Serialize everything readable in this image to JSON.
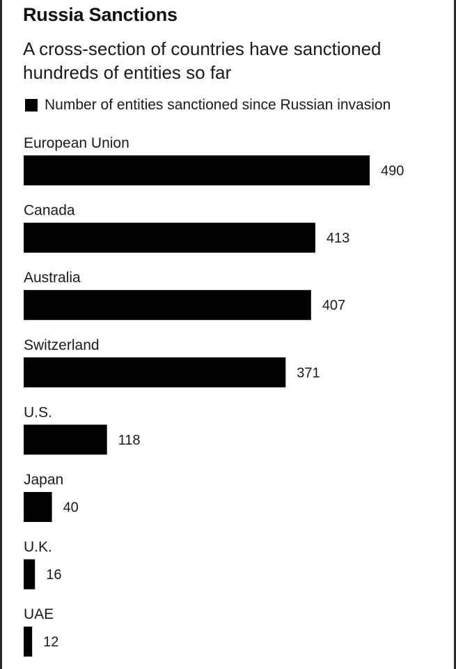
{
  "title": "Russia Sanctions",
  "subtitle": "A cross-section of countries have sanctioned hundreds of entities so far",
  "chart_data": {
    "type": "bar",
    "orientation": "horizontal",
    "title": "Russia Sanctions",
    "subtitle": "A cross-section of countries have sanctioned hundreds of entities so far",
    "categories": [
      "European Union",
      "Canada",
      "Australia",
      "Switzerland",
      "U.S.",
      "Japan",
      "U.K.",
      "UAE"
    ],
    "series": [
      {
        "name": "Number of entities sanctioned since Russian invasion",
        "values": [
          490,
          413,
          407,
          371,
          118,
          40,
          16,
          12
        ],
        "color": "#000000"
      }
    ],
    "legend": "top-left",
    "grid": false,
    "xlim": [
      0,
      490
    ]
  }
}
